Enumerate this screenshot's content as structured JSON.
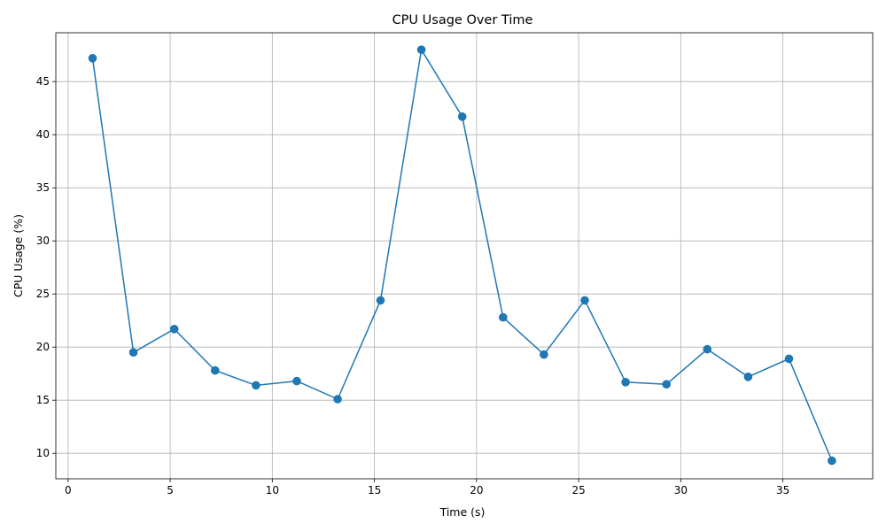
{
  "chart_data": {
    "type": "line",
    "title": "CPU Usage Over Time",
    "xlabel": "Time (s)",
    "ylabel": "CPU Usage (%)",
    "xlim": [
      -0.6,
      39.4
    ],
    "ylim": [
      7.6,
      49.6
    ],
    "xticks": [
      0,
      5,
      10,
      15,
      20,
      25,
      30,
      35
    ],
    "yticks": [
      10,
      15,
      20,
      25,
      30,
      35,
      40,
      45
    ],
    "grid": true,
    "legend": "none",
    "color": "#1f77b4",
    "marker": "circle",
    "x": [
      1.2,
      3.2,
      5.2,
      7.2,
      9.2,
      11.2,
      13.2,
      15.3,
      17.3,
      19.3,
      21.3,
      23.3,
      25.3,
      27.3,
      29.3,
      31.3,
      33.3,
      35.3,
      37.4
    ],
    "y": [
      47.2,
      19.5,
      21.7,
      17.8,
      16.4,
      16.8,
      15.1,
      24.4,
      48.0,
      41.7,
      22.8,
      19.3,
      24.4,
      16.7,
      16.5,
      19.8,
      17.2,
      18.9,
      9.3
    ]
  }
}
